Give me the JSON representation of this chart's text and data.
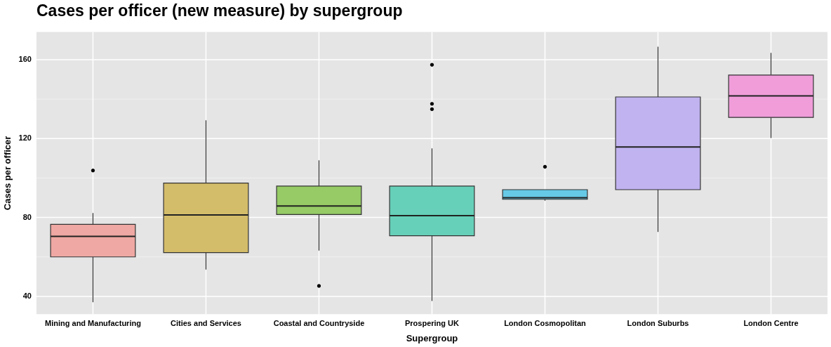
{
  "chart_data": {
    "type": "box",
    "title": "Cases per officer (new measure) by supergroup",
    "xlabel": "Supergroup",
    "ylabel": "Cases per officer",
    "categories": [
      "Mining and Manufacturing",
      "Cities and Services",
      "Coastal and Countryside",
      "Prospering UK",
      "London Cosmopolitan",
      "London Suburbs",
      "London Centre"
    ],
    "colors": [
      "#efa8a3",
      "#d4bd6a",
      "#96cb65",
      "#66d0b8",
      "#66c9e6",
      "#c1b3f0",
      "#f09dda"
    ],
    "boxes": [
      {
        "low": 37,
        "q1": 60,
        "median": 70.4,
        "q3": 76.5,
        "high": 82.3,
        "outliers": [
          103.8
        ]
      },
      {
        "low": 53.6,
        "q1": 62.2,
        "median": 81.3,
        "q3": 97.4,
        "high": 129.3
      },
      {
        "low": 63.2,
        "q1": 81.5,
        "median": 85.8,
        "q3": 95.9,
        "high": 109,
        "outliers": [
          45.3
        ]
      },
      {
        "low": 37.7,
        "q1": 70.7,
        "median": 80.9,
        "q3": 95.9,
        "high": 115,
        "outliers": [
          157.4,
          137.6,
          134.9
        ]
      },
      {
        "low": 88.5,
        "q1": 89.2,
        "median": 90,
        "q3": 94.1,
        "high": 94.1,
        "outliers": [
          105.7
        ]
      },
      {
        "low": 72.6,
        "q1": 94.1,
        "median": 115.7,
        "q3": 141.1,
        "high": 166.6
      },
      {
        "low": 120.3,
        "q1": 130.7,
        "median": 141.6,
        "q3": 152.2,
        "high": 163.4
      }
    ],
    "ylim": [
      31,
      174
    ],
    "yticks": [
      40,
      80,
      120,
      160
    ],
    "grid": true,
    "legend": false
  }
}
